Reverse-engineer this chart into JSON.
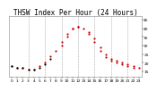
{
  "title": "THSW Index Per Hour (24 Hours)",
  "bg_color": "#ffffff",
  "plot_bg_color": "#ffffff",
  "ylim": [
    12,
    47
  ],
  "xlim": [
    -0.5,
    23.5
  ],
  "ytick_values": [
    15,
    20,
    25,
    30,
    35,
    40,
    45
  ],
  "xtick_values": [
    0,
    1,
    2,
    3,
    4,
    5,
    6,
    7,
    8,
    9,
    10,
    11,
    12,
    13,
    14,
    15,
    16,
    17,
    18,
    19,
    20,
    21,
    22,
    23
  ],
  "vgrid_positions": [
    3,
    6,
    9,
    12,
    15,
    18,
    21
  ],
  "red_color": "#cc0000",
  "black_color": "#000000",
  "title_fontsize": 5.5,
  "tick_fontsize": 3.2,
  "marker_size": 2.5,
  "red_x": [
    0,
    1,
    2,
    3,
    4,
    5,
    6,
    7,
    8,
    9,
    9,
    10,
    10,
    11,
    11,
    12,
    12,
    13,
    14,
    14,
    15,
    15,
    16,
    16,
    17,
    17,
    18,
    18,
    19,
    19,
    20,
    20,
    21,
    21,
    22,
    22,
    23
  ],
  "red_y": [
    18,
    17,
    17,
    16,
    16,
    18,
    20,
    24,
    27,
    30,
    32,
    35,
    37,
    40,
    40,
    41,
    41,
    40,
    38,
    37,
    34,
    32,
    29,
    27,
    25,
    23,
    22,
    21,
    21,
    20,
    20,
    19,
    19,
    18,
    18,
    17,
    17
  ],
  "black_x": [
    0,
    1,
    2,
    3,
    4,
    5,
    6,
    7
  ],
  "black_y": [
    18,
    17,
    17,
    16,
    16,
    17,
    19,
    22
  ]
}
